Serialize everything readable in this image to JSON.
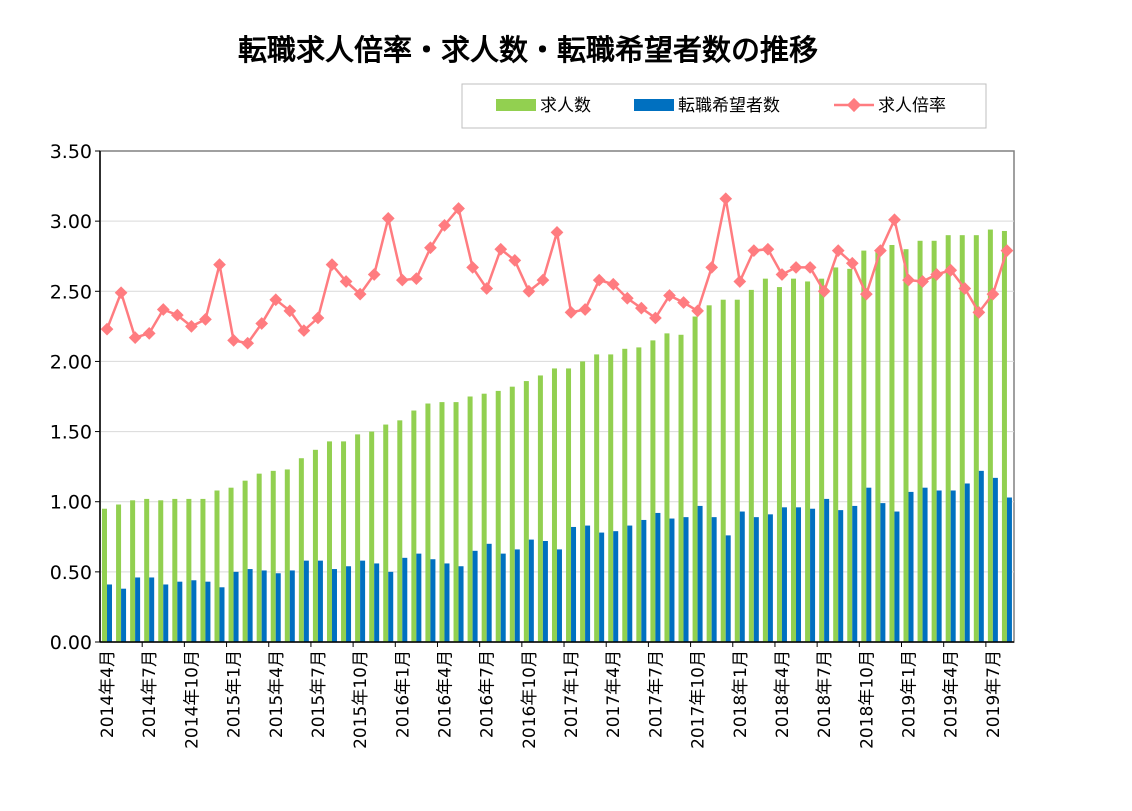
{
  "chart_data": {
    "type": "bar+line",
    "title": "転職求人倍率・求人数・転職希望者数の推移",
    "xlabel": "",
    "ylabel": "",
    "ylim": [
      0,
      3.5
    ],
    "yticks": [
      "0.00",
      "0.50",
      "1.00",
      "1.50",
      "2.00",
      "2.50",
      "3.00",
      "3.50"
    ],
    "grid": true,
    "legend_placement": "top-right",
    "categories": [
      "2014年4月",
      "2014年5月",
      "2014年6月",
      "2014年7月",
      "2014年8月",
      "2014年9月",
      "2014年10月",
      "2014年11月",
      "2014年12月",
      "2015年1月",
      "2015年2月",
      "2015年3月",
      "2015年4月",
      "2015年5月",
      "2015年6月",
      "2015年7月",
      "2015年8月",
      "2015年9月",
      "2015年10月",
      "2015年11月",
      "2015年12月",
      "2016年1月",
      "2016年2月",
      "2016年3月",
      "2016年4月",
      "2016年5月",
      "2016年6月",
      "2016年7月",
      "2016年8月",
      "2016年9月",
      "2016年10月",
      "2016年11月",
      "2016年12月",
      "2017年1月",
      "2017年2月",
      "2017年3月",
      "2017年4月",
      "2017年5月",
      "2017年6月",
      "2017年7月",
      "2017年8月",
      "2017年9月",
      "2017年10月",
      "2017年11月",
      "2017年12月",
      "2018年1月",
      "2018年2月",
      "2018年3月",
      "2018年4月",
      "2018年5月",
      "2018年6月",
      "2018年7月",
      "2018年8月",
      "2018年9月",
      "2018年10月",
      "2018年11月",
      "2018年12月",
      "2019年1月",
      "2019年2月",
      "2019年3月",
      "2019年4月",
      "2019年5月",
      "2019年6月",
      "2019年7月",
      "2019年8月"
    ],
    "tick_labels": [
      "2014年4月",
      "2014年7月",
      "2014年10月",
      "2015年1月",
      "2015年4月",
      "2015年7月",
      "2015年10月",
      "2016年1月",
      "2016年4月",
      "2016年7月",
      "2016年10月",
      "2017年1月",
      "2017年4月",
      "2017年7月",
      "2017年10月",
      "2018年1月",
      "2018年4月",
      "2018年7月",
      "2018年10月",
      "2019年1月",
      "2019年4月",
      "2019年7月"
    ],
    "series": [
      {
        "name": "求人数",
        "kind": "bar",
        "color": "#92d050",
        "values": [
          0.95,
          0.98,
          1.01,
          1.02,
          1.01,
          1.02,
          1.02,
          1.02,
          1.08,
          1.1,
          1.15,
          1.2,
          1.22,
          1.23,
          1.31,
          1.37,
          1.43,
          1.43,
          1.48,
          1.5,
          1.55,
          1.58,
          1.65,
          1.7,
          1.71,
          1.71,
          1.75,
          1.77,
          1.79,
          1.82,
          1.86,
          1.9,
          1.95,
          1.95,
          2.0,
          2.05,
          2.05,
          2.09,
          2.1,
          2.15,
          2.2,
          2.19,
          2.32,
          2.4,
          2.44,
          2.44,
          2.51,
          2.59,
          2.53,
          2.59,
          2.57,
          2.59,
          2.67,
          2.66,
          2.79,
          2.78,
          2.83,
          2.8,
          2.86,
          2.86,
          2.9,
          2.9,
          2.9,
          2.94,
          2.93
        ]
      },
      {
        "name": "転職希望者数",
        "kind": "bar",
        "color": "#0070c0",
        "values": [
          0.41,
          0.38,
          0.46,
          0.46,
          0.41,
          0.43,
          0.44,
          0.43,
          0.39,
          0.5,
          0.52,
          0.51,
          0.49,
          0.51,
          0.58,
          0.58,
          0.52,
          0.54,
          0.58,
          0.56,
          0.5,
          0.6,
          0.63,
          0.59,
          0.56,
          0.54,
          0.65,
          0.7,
          0.63,
          0.66,
          0.73,
          0.72,
          0.66,
          0.82,
          0.83,
          0.78,
          0.79,
          0.83,
          0.87,
          0.92,
          0.88,
          0.89,
          0.97,
          0.89,
          0.76,
          0.93,
          0.89,
          0.91,
          0.96,
          0.96,
          0.95,
          1.02,
          0.94,
          0.97,
          1.1,
          0.99,
          0.93,
          1.07,
          1.1,
          1.08,
          1.08,
          1.13,
          1.22,
          1.17,
          1.03
        ]
      },
      {
        "name": "求人倍率",
        "kind": "line",
        "color": "#ff7c80",
        "values": [
          2.23,
          2.49,
          2.17,
          2.2,
          2.37,
          2.33,
          2.25,
          2.3,
          2.69,
          2.15,
          2.13,
          2.27,
          2.44,
          2.36,
          2.22,
          2.31,
          2.69,
          2.57,
          2.48,
          2.62,
          3.02,
          2.58,
          2.59,
          2.81,
          2.97,
          3.09,
          2.67,
          2.52,
          2.8,
          2.72,
          2.5,
          2.58,
          2.92,
          2.35,
          2.37,
          2.58,
          2.55,
          2.45,
          2.38,
          2.31,
          2.47,
          2.42,
          2.36,
          2.67,
          3.16,
          2.57,
          2.79,
          2.8,
          2.62,
          2.67,
          2.67,
          2.5,
          2.79,
          2.7,
          2.48,
          2.79,
          3.01,
          2.58,
          2.57,
          2.62,
          2.65,
          2.52,
          2.35,
          2.48,
          2.79
        ]
      }
    ]
  }
}
